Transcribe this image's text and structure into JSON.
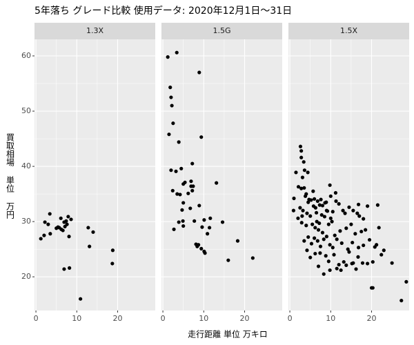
{
  "title": "5年落ち グレード比較 使用データ: 2020年12月1日～31日",
  "x_label": "走行距離 単位 万キロ",
  "y_label": "買取相場 単位 万円",
  "chart_data": [
    {
      "type": "scatter",
      "title": "1.3X",
      "color": "#000000",
      "grid": true,
      "minor_grid": true,
      "xlim": [
        -0.35,
        29.2
      ],
      "xticks": [
        0,
        10,
        20
      ],
      "ylim": [
        13.9,
        63
      ],
      "yticks": [
        20,
        30,
        40,
        50,
        60
      ],
      "x": [
        1.2,
        2.0,
        2.2,
        3.0,
        3.4,
        3.5,
        5.0,
        5.4,
        5.7,
        6.1,
        6.2,
        6.6,
        6.9,
        7.1,
        7.4,
        7.6,
        7.9,
        8.1,
        8.6,
        6.9,
        8.2,
        10.9,
        12.8,
        13.1,
        14.0,
        18.8,
        18.7
      ],
      "y": [
        26.9,
        27.5,
        29.9,
        29.5,
        31.4,
        27.8,
        28.8,
        29.0,
        28.9,
        30.6,
        28.6,
        28.4,
        29.9,
        29.1,
        30.1,
        29.5,
        30.9,
        27.3,
        30.4,
        21.4,
        21.6,
        16.0,
        28.9,
        25.5,
        28.1,
        24.8,
        22.4
      ]
    },
    {
      "type": "scatter",
      "title": "1.5G",
      "color": "#000000",
      "grid": true,
      "minor_grid": true,
      "xlim": [
        -0.35,
        29.2
      ],
      "xticks": [
        0,
        10,
        20
      ],
      "ylim": [
        13.9,
        63
      ],
      "yticks": [
        20,
        30,
        40,
        50,
        60
      ],
      "x": [
        1.2,
        3.4,
        1.8,
        2.0,
        2.2,
        2.5,
        1.5,
        3.9,
        8.9,
        9.4,
        2.0,
        2.4,
        3.2,
        3.5,
        4.2,
        4.5,
        5.0,
        5.4,
        6.2,
        6.9,
        6.9,
        7.2,
        7.2,
        7.4,
        5.0,
        4.7,
        6.7,
        8.9,
        3.9,
        4.9,
        5.0,
        2.7,
        7.7,
        9.6,
        10.1,
        11.4,
        11.6,
        8.1,
        8.4,
        8.7,
        9.4,
        10.1,
        10.3,
        10.9,
        13.1,
        14.6,
        16.0,
        18.3,
        22.0
      ],
      "y": [
        59.8,
        60.6,
        54.3,
        52.5,
        51.0,
        47.8,
        45.8,
        44.4,
        57.0,
        45.3,
        39.3,
        35.6,
        39.1,
        35.0,
        34.9,
        39.6,
        36.8,
        37.1,
        35.1,
        37.3,
        36.4,
        40.5,
        35.6,
        36.4,
        33.4,
        32.1,
        32.4,
        32.9,
        29.9,
        30.1,
        29.2,
        28.6,
        30.1,
        29.0,
        30.3,
        28.9,
        30.6,
        25.9,
        25.5,
        25.8,
        25.1,
        24.6,
        24.3,
        27.8,
        37.0,
        29.9,
        23.0,
        26.5,
        23.4
      ]
    },
    {
      "type": "scatter",
      "title": "1.5X",
      "color": "#000000",
      "grid": true,
      "minor_grid": true,
      "xlim": [
        -0.35,
        29.2
      ],
      "xticks": [
        0,
        10,
        20
      ],
      "ylim": [
        13.9,
        63
      ],
      "yticks": [
        20,
        30,
        40,
        50,
        60
      ],
      "x": [
        2.6,
        2.8,
        2.8,
        3.4,
        3.6,
        1.5,
        4.4,
        3.1,
        2.1,
        2.8,
        3.5,
        1.0,
        4.0,
        5.7,
        9.8,
        3.8,
        4.5,
        5.2,
        6.0,
        6.8,
        7.3,
        8.0,
        8.6,
        9.0,
        2.5,
        3.2,
        4.2,
        5.0,
        6.5,
        7.8,
        10.5,
        12.0,
        13.0,
        13.5,
        14.5,
        15.5,
        16.5,
        17.0,
        18.0,
        19.0,
        21.5,
        2.0,
        2.9,
        4.0,
        5.5,
        6.2,
        7.0,
        8.0,
        9.5,
        10.3,
        11.0,
        12.3,
        13.8,
        15.0,
        16.0,
        17.5,
        18.5,
        21.8,
        3.5,
        4.5,
        5.3,
        6.0,
        6.8,
        7.5,
        8.3,
        9.0,
        9.8,
        10.5,
        11.5,
        12.7,
        14.2,
        15.3,
        16.8,
        18.0,
        19.5,
        20.8,
        21.2,
        23.0,
        4.2,
        5.0,
        6.2,
        7.4,
        8.8,
        9.5,
        10.8,
        12.0,
        13.2,
        14.5,
        15.5,
        16.7,
        17.8,
        19.0,
        20.3,
        22.4,
        7.0,
        8.3,
        9.8,
        11.5,
        12.5,
        13.8,
        15.2,
        16.2,
        20.0,
        20.3,
        25.0,
        28.5,
        27.3,
        6.6,
        7.2,
        8.5,
        9.2,
        10.0,
        3.0,
        5.8,
        6.3,
        7.6,
        8.9,
        10.0,
        16.8,
        11.3,
        11.2,
        0.9,
        4.7
      ],
      "y": [
        43.6,
        42.8,
        41.6,
        40.8,
        39.3,
        38.9,
        38.9,
        38.0,
        36.3,
        36.0,
        36.1,
        34.2,
        35.0,
        35.5,
        36.6,
        34.6,
        33.5,
        33.9,
        34.1,
        33.7,
        33.0,
        32.9,
        33.4,
        32.0,
        32.5,
        32.0,
        31.5,
        31.0,
        31.6,
        31.2,
        31.8,
        33.2,
        32.0,
        31.5,
        32.6,
        32.0,
        31.5,
        31.0,
        30.5,
        32.8,
        33.0,
        30.6,
        29.8,
        29.3,
        29.5,
        28.9,
        28.5,
        28.0,
        29.5,
        30.0,
        27.5,
        28.3,
        28.8,
        29.5,
        27.8,
        28.2,
        28.5,
        28.9,
        26.5,
        27.2,
        26.0,
        27.0,
        26.5,
        25.5,
        26.8,
        27.3,
        25.8,
        25.3,
        26.8,
        26.1,
        25.0,
        26.2,
        25.3,
        25.7,
        26.7,
        25.4,
        25.8,
        24.8,
        24.8,
        23.5,
        24.2,
        24.3,
        23.8,
        22.8,
        24.0,
        22.2,
        22.7,
        24.5,
        22.5,
        23.6,
        22.5,
        22.4,
        22.7,
        24.0,
        21.9,
        20.5,
        21.2,
        21.5,
        21.2,
        22.1,
        22.4,
        21.4,
        18.0,
        18.0,
        22.5,
        19.1,
        15.7,
        30.0,
        29.7,
        30.9,
        31.9,
        30.6,
        31.0,
        32.8,
        32.5,
        34.0,
        33.5,
        34.6,
        33.1,
        33.7,
        35.2,
        32.0,
        34.0
      ]
    }
  ]
}
